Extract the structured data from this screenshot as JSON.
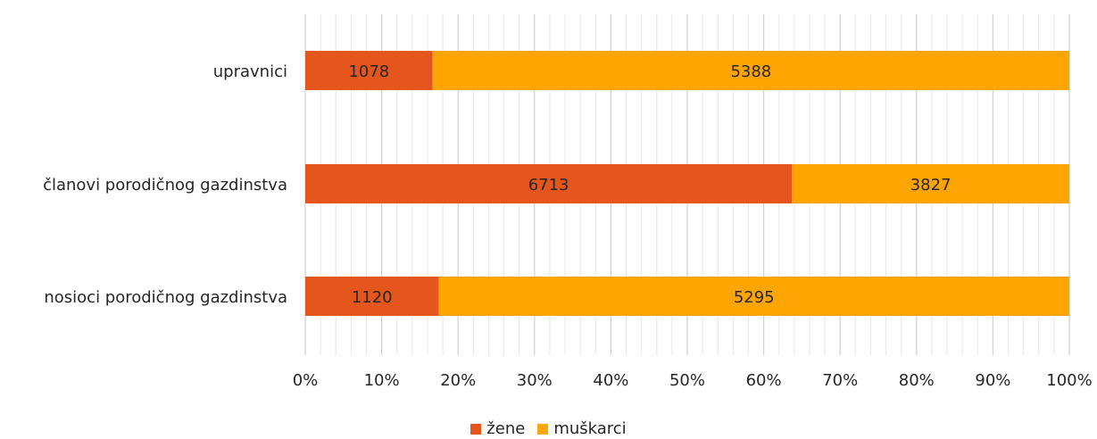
{
  "chart_data": {
    "type": "bar",
    "orientation": "horizontal",
    "stacking": "percent",
    "categories": [
      "upravnici",
      "članovi porodičnog gazdinstva",
      "nosioci porodičnog gazdinstva"
    ],
    "series": [
      {
        "name": "žene",
        "color": "#E4561B",
        "values": [
          1078,
          6713,
          1120
        ]
      },
      {
        "name": "muškarci",
        "color": "#FFA502",
        "values": [
          5388,
          3827,
          5295
        ]
      }
    ],
    "x_ticks": [
      "0%",
      "10%",
      "20%",
      "30%",
      "40%",
      "50%",
      "60%",
      "70%",
      "80%",
      "90%",
      "100%"
    ],
    "xlim": [
      0,
      100
    ],
    "grid": true,
    "legend_position": "bottom"
  }
}
